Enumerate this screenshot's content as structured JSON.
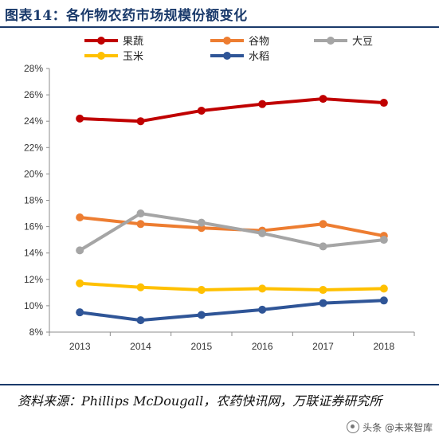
{
  "title": "图表14：各作物农药市场规模份额变化",
  "source": "资料来源：Phillips McDougall，农药快讯网，万联证券研究所",
  "watermark": {
    "label": "头条 @未来智库",
    "icon": "circle-logo-icon"
  },
  "chart_data": {
    "type": "line",
    "categories": [
      "2013",
      "2014",
      "2015",
      "2016",
      "2017",
      "2018"
    ],
    "ylim": [
      8,
      28
    ],
    "yticks": [
      "8%",
      "10%",
      "12%",
      "14%",
      "16%",
      "18%",
      "20%",
      "22%",
      "24%",
      "26%",
      "28%"
    ],
    "grid": false,
    "legend": "top",
    "series": [
      {
        "name": "果蔬",
        "color": "#c00000",
        "values": [
          24.2,
          24.0,
          24.8,
          25.3,
          25.7,
          25.4
        ]
      },
      {
        "name": "谷物",
        "color": "#ed7d31",
        "values": [
          16.7,
          16.2,
          15.9,
          15.7,
          16.2,
          15.3
        ]
      },
      {
        "name": "大豆",
        "color": "#a5a5a5",
        "values": [
          14.2,
          17.0,
          16.3,
          15.5,
          14.5,
          15.0
        ]
      },
      {
        "name": "玉米",
        "color": "#ffc000",
        "values": [
          11.7,
          11.4,
          11.2,
          11.3,
          11.2,
          11.3
        ]
      },
      {
        "name": "水稻",
        "color": "#2f5597",
        "values": [
          9.5,
          8.9,
          9.3,
          9.7,
          10.2,
          10.4
        ]
      }
    ]
  }
}
